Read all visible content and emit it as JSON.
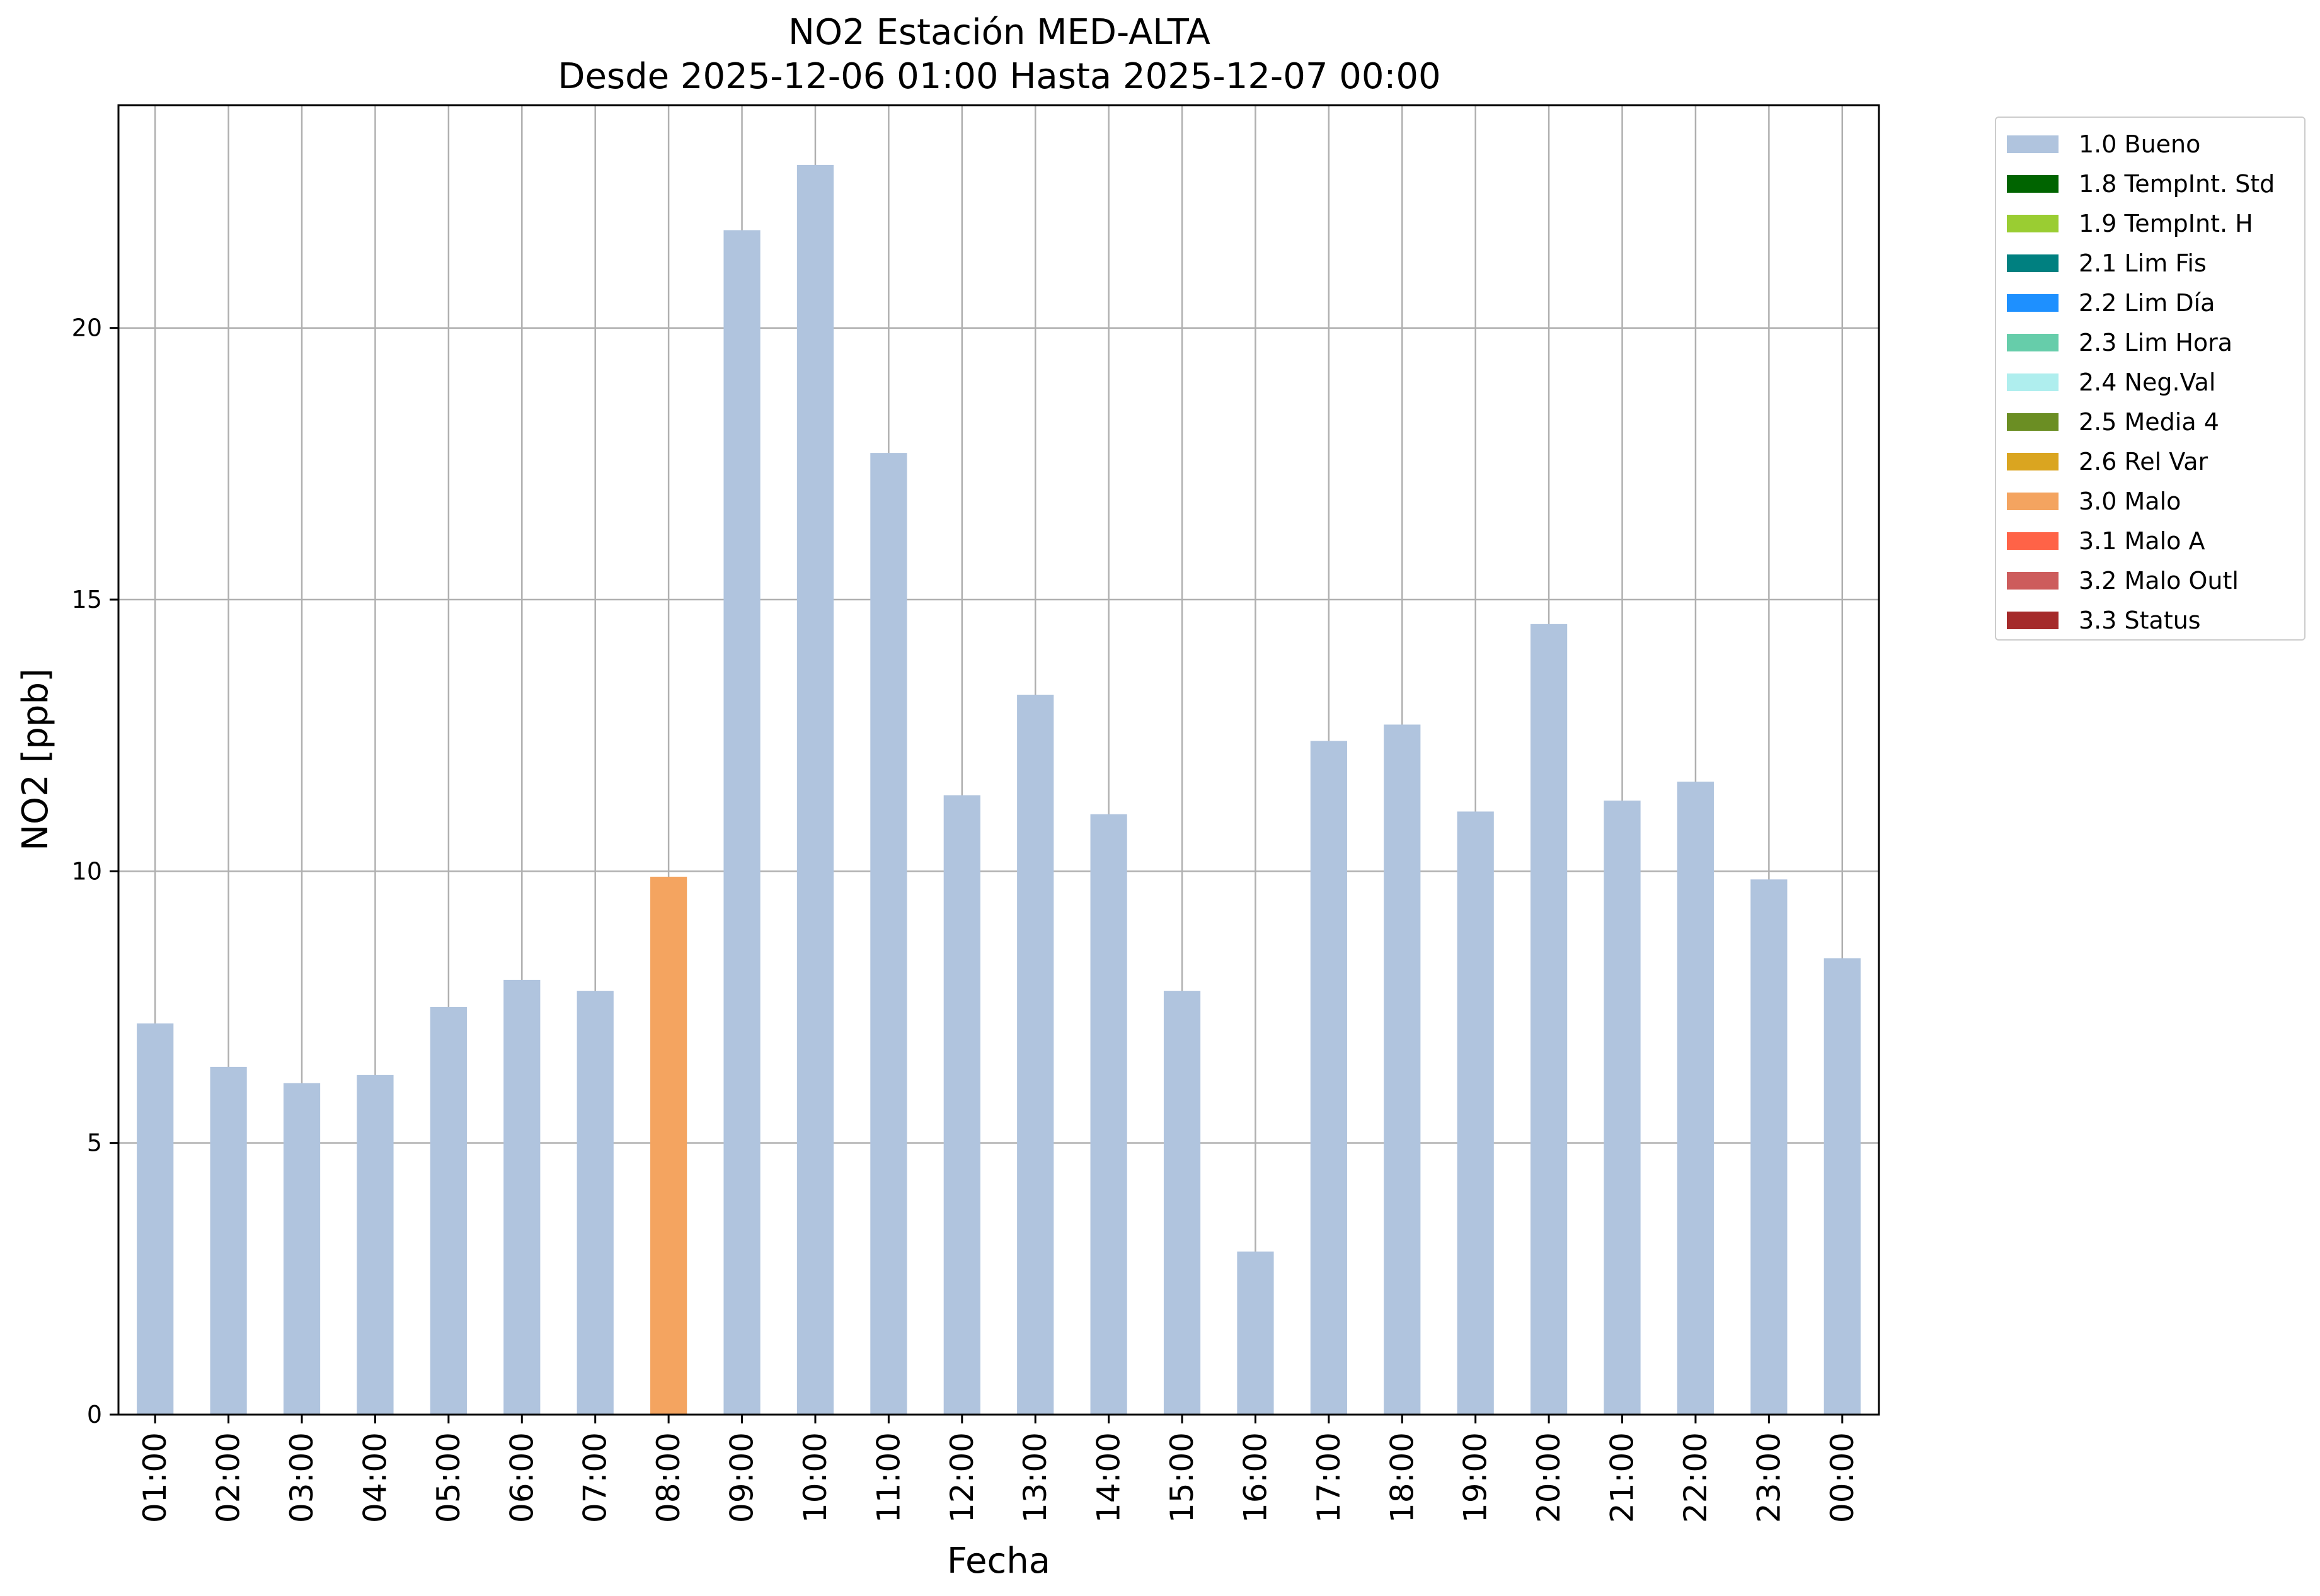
{
  "chart_data": {
    "type": "bar",
    "title": "NO2 Estación MED-ALTA",
    "subtitle": "Desde 2025-12-06 01:00 Hasta 2025-12-07 00:00",
    "xlabel": "Fecha",
    "ylabel": "NO2 [ppb]",
    "ylim": [
      0,
      24.1
    ],
    "yticks": [
      0,
      5,
      10,
      15,
      20
    ],
    "grid": true,
    "legend_placement": "outside-top-right",
    "categories": [
      "01:00",
      "02:00",
      "03:00",
      "04:00",
      "05:00",
      "06:00",
      "07:00",
      "08:00",
      "09:00",
      "10:00",
      "11:00",
      "12:00",
      "13:00",
      "14:00",
      "15:00",
      "16:00",
      "17:00",
      "18:00",
      "19:00",
      "20:00",
      "21:00",
      "22:00",
      "23:00",
      "00:00"
    ],
    "values": [
      7.2,
      6.4,
      6.1,
      6.25,
      7.5,
      8.0,
      7.8,
      9.9,
      21.8,
      23.0,
      17.7,
      11.4,
      13.25,
      11.05,
      7.8,
      3.0,
      12.4,
      12.7,
      11.1,
      14.55,
      11.3,
      11.65,
      9.85,
      8.4
    ],
    "bar_flags": [
      "1.0 Bueno",
      "1.0 Bueno",
      "1.0 Bueno",
      "1.0 Bueno",
      "1.0 Bueno",
      "1.0 Bueno",
      "1.0 Bueno",
      "3.0 Malo",
      "1.0 Bueno",
      "1.0 Bueno",
      "1.0 Bueno",
      "1.0 Bueno",
      "1.0 Bueno",
      "1.0 Bueno",
      "1.0 Bueno",
      "1.0 Bueno",
      "1.0 Bueno",
      "1.0 Bueno",
      "1.0 Bueno",
      "1.0 Bueno",
      "1.0 Bueno",
      "1.0 Bueno",
      "1.0 Bueno",
      "1.0 Bueno"
    ],
    "legend": [
      {
        "label": "1.0 Bueno",
        "color": "#b0c4de"
      },
      {
        "label": "1.8 TempInt. Std",
        "color": "#006400"
      },
      {
        "label": "1.9 TempInt. H",
        "color": "#9acd32"
      },
      {
        "label": "2.1 Lim Fis",
        "color": "#008080"
      },
      {
        "label": "2.2 Lim Día",
        "color": "#1e90ff"
      },
      {
        "label": "2.3 Lim Hora",
        "color": "#66cdaa"
      },
      {
        "label": "2.4 Neg.Val",
        "color": "#afeeee"
      },
      {
        "label": "2.5 Media 4",
        "color": "#6b8e23"
      },
      {
        "label": "2.6 Rel Var",
        "color": "#daa520"
      },
      {
        "label": "3.0 Malo",
        "color": "#f4a460"
      },
      {
        "label": "3.1 Malo A",
        "color": "#ff6347"
      },
      {
        "label": "3.2 Malo Outl",
        "color": "#cd5c5c"
      },
      {
        "label": "3.3 Status",
        "color": "#a52a2a"
      }
    ]
  }
}
